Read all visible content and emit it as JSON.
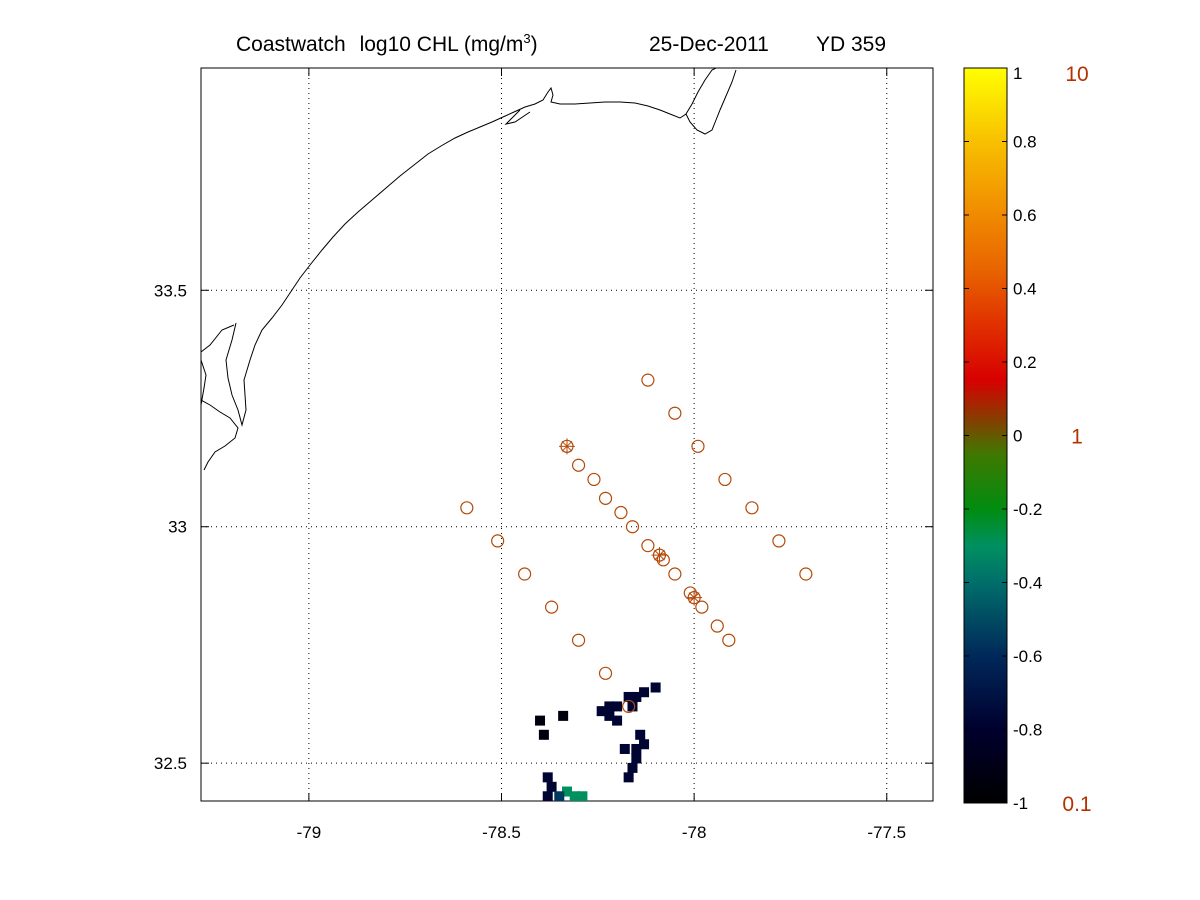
{
  "title": {
    "product": "Coastwatch",
    "field": "log10  CHL (mg/m",
    "superscript": "3",
    "close": ")",
    "date": "25-Dec-2011",
    "yearday": "YD 359"
  },
  "map": {
    "lon_range": [
      -79.28,
      -77.38
    ],
    "lat_range": [
      32.42,
      33.97
    ],
    "x_ticks": [
      -79,
      -78.5,
      -78,
      -77.5
    ],
    "x_tick_labels": [
      "-79",
      "-78.5",
      "-78",
      "-77.5"
    ],
    "y_ticks": [
      32.5,
      33,
      33.5
    ],
    "y_tick_labels": [
      "32.5",
      "33",
      "33.5"
    ],
    "grid": true,
    "coastline_color": "#000000",
    "station_color": "#b34a0a",
    "stations": [
      {
        "lon": -78.12,
        "lat": 33.31
      },
      {
        "lon": -78.05,
        "lat": 33.24
      },
      {
        "lon": -77.99,
        "lat": 33.17
      },
      {
        "lon": -77.92,
        "lat": 33.1
      },
      {
        "lon": -77.85,
        "lat": 33.04
      },
      {
        "lon": -77.78,
        "lat": 32.97
      },
      {
        "lon": -77.71,
        "lat": 32.9
      },
      {
        "lon": -78.33,
        "lat": 33.17,
        "marked": true
      },
      {
        "lon": -78.3,
        "lat": 33.13
      },
      {
        "lon": -78.26,
        "lat": 33.1
      },
      {
        "lon": -78.23,
        "lat": 33.06
      },
      {
        "lon": -78.19,
        "lat": 33.03
      },
      {
        "lon": -78.16,
        "lat": 33.0
      },
      {
        "lon": -78.12,
        "lat": 32.96
      },
      {
        "lon": -78.09,
        "lat": 32.94,
        "marked": true
      },
      {
        "lon": -78.08,
        "lat": 32.93
      },
      {
        "lon": -78.05,
        "lat": 32.9
      },
      {
        "lon": -78.01,
        "lat": 32.86
      },
      {
        "lon": -78.0,
        "lat": 32.85,
        "marked": true
      },
      {
        "lon": -77.98,
        "lat": 32.83
      },
      {
        "lon": -77.94,
        "lat": 32.79
      },
      {
        "lon": -77.91,
        "lat": 32.76
      },
      {
        "lon": -78.59,
        "lat": 33.04
      },
      {
        "lon": -78.51,
        "lat": 32.97
      },
      {
        "lon": -78.44,
        "lat": 32.9
      },
      {
        "lon": -78.37,
        "lat": 32.83
      },
      {
        "lon": -78.3,
        "lat": 32.76
      },
      {
        "lon": -78.23,
        "lat": 32.69
      },
      {
        "lon": -78.17,
        "lat": 32.62
      }
    ],
    "chl_pixels": [
      {
        "lon": -78.22,
        "lat": 32.62,
        "log10_chl": -0.78
      },
      {
        "lon": -78.2,
        "lat": 32.62,
        "log10_chl": -0.78
      },
      {
        "lon": -78.24,
        "lat": 32.61,
        "log10_chl": -0.78
      },
      {
        "lon": -78.22,
        "lat": 32.6,
        "log10_chl": -0.78
      },
      {
        "lon": -78.2,
        "lat": 32.59,
        "log10_chl": -0.78
      },
      {
        "lon": -78.17,
        "lat": 32.64,
        "log10_chl": -0.78
      },
      {
        "lon": -78.15,
        "lat": 32.64,
        "log10_chl": -0.78
      },
      {
        "lon": -78.16,
        "lat": 32.62,
        "log10_chl": -0.78
      },
      {
        "lon": -78.13,
        "lat": 32.65,
        "log10_chl": -0.78
      },
      {
        "lon": -78.1,
        "lat": 32.66,
        "log10_chl": -0.78
      },
      {
        "lon": -78.18,
        "lat": 32.53,
        "log10_chl": -0.78
      },
      {
        "lon": -78.15,
        "lat": 32.53,
        "log10_chl": -0.78
      },
      {
        "lon": -78.13,
        "lat": 32.54,
        "log10_chl": -0.78
      },
      {
        "lon": -78.15,
        "lat": 32.51,
        "log10_chl": -0.78
      },
      {
        "lon": -78.16,
        "lat": 32.49,
        "log10_chl": -0.78
      },
      {
        "lon": -78.17,
        "lat": 32.47,
        "log10_chl": -0.78
      },
      {
        "lon": -78.14,
        "lat": 32.56,
        "log10_chl": -0.78
      },
      {
        "lon": -78.38,
        "lat": 32.47,
        "log10_chl": -0.78
      },
      {
        "lon": -78.37,
        "lat": 32.45,
        "log10_chl": -0.78
      },
      {
        "lon": -78.38,
        "lat": 32.43,
        "log10_chl": -0.78
      },
      {
        "lon": -78.33,
        "lat": 32.44,
        "log10_chl": -0.3
      },
      {
        "lon": -78.31,
        "lat": 32.43,
        "log10_chl": -0.3
      },
      {
        "lon": -78.29,
        "lat": 32.43,
        "log10_chl": -0.3
      },
      {
        "lon": -78.35,
        "lat": 32.43,
        "log10_chl": -0.55
      },
      {
        "lon": -78.4,
        "lat": 32.59,
        "log10_chl": -0.95
      },
      {
        "lon": -78.34,
        "lat": 32.6,
        "log10_chl": -0.95
      },
      {
        "lon": -78.39,
        "lat": 32.56,
        "log10_chl": -0.95
      }
    ]
  },
  "colorbar": {
    "range": [
      -1,
      1
    ],
    "ticks": [
      1,
      0.8,
      0.6,
      0.4,
      0.2,
      0,
      -0.2,
      -0.4,
      -0.6,
      -0.8,
      -1
    ],
    "tick_labels": [
      "1",
      "0.8",
      "0.6",
      "0.4",
      "0.2",
      "0",
      "-0.2",
      "-0.4",
      "-0.6",
      "-0.8",
      "-1"
    ],
    "right_labels": [
      "10",
      "1",
      "0.1"
    ],
    "right_values": [
      1,
      0,
      -1
    ],
    "right_label_color": "#b33200",
    "colormap": [
      [
        -1.0,
        "#000000"
      ],
      [
        -0.8,
        "#00002e"
      ],
      [
        -0.6,
        "#00285a"
      ],
      [
        -0.4,
        "#006e6a"
      ],
      [
        -0.3,
        "#009060"
      ],
      [
        -0.2,
        "#008c10"
      ],
      [
        -0.05,
        "#407800"
      ],
      [
        0.05,
        "#8a3a00"
      ],
      [
        0.15,
        "#d80000"
      ],
      [
        0.3,
        "#e03000"
      ],
      [
        0.45,
        "#e86400"
      ],
      [
        0.6,
        "#f08a00"
      ],
      [
        0.8,
        "#f8c000"
      ],
      [
        1.0,
        "#ffff00"
      ]
    ]
  }
}
